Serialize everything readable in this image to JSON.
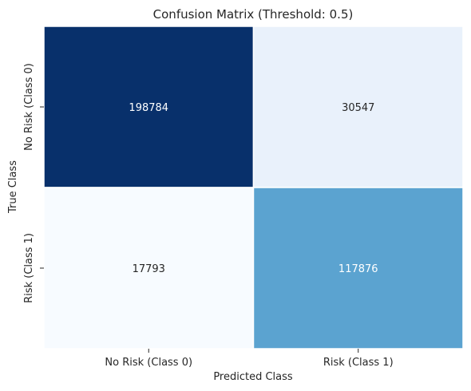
{
  "chart_data": {
    "type": "heatmap",
    "title": "Confusion Matrix (Threshold: 0.5)",
    "xlabel": "Predicted Class",
    "ylabel": "True Class",
    "x_categories": [
      "No Risk (Class 0)",
      "Risk (Class 1)"
    ],
    "y_categories": [
      "No Risk (Class 0)",
      "Risk (Class 1)"
    ],
    "values": [
      [
        198784,
        30547
      ],
      [
        17793,
        117876
      ]
    ],
    "cell_colors": [
      [
        "#08306b",
        "#e9f1fb"
      ],
      [
        "#f7fbff",
        "#5ba3d0"
      ]
    ],
    "cell_text_colors": [
      [
        "#ffffff",
        "#262626"
      ],
      [
        "#262626",
        "#ffffff"
      ]
    ],
    "colormap": "Blues",
    "colorbar": false,
    "grid": false
  }
}
